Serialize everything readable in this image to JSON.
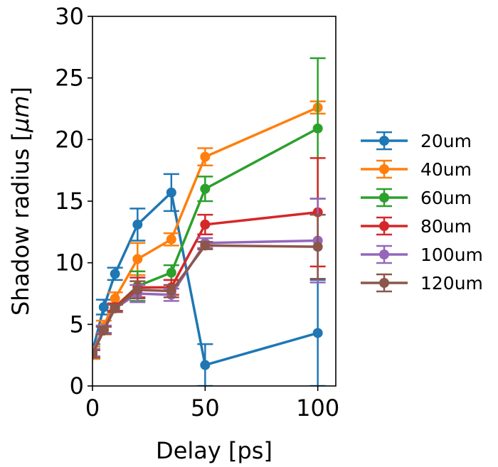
{
  "chart_data": {
    "type": "line",
    "xlabel": "Delay [ps]",
    "ylabel_prefix": "Shadow radius [",
    "ylabel_unit": "μm",
    "ylabel_suffix": "]",
    "xlim": [
      0,
      108
    ],
    "ylim": [
      0,
      30
    ],
    "xticks": [
      0,
      50,
      100
    ],
    "yticks": [
      0,
      5,
      10,
      15,
      20,
      25,
      30
    ],
    "grid": false,
    "legend_position": "right",
    "series": [
      {
        "name": "20um",
        "color": "#1f77b4",
        "x": [
          0,
          5,
          10,
          20,
          35,
          50,
          100
        ],
        "y": [
          2.8,
          6.4,
          9.1,
          13.1,
          15.7,
          1.7,
          4.3
        ],
        "err": [
          0.6,
          0.6,
          0.5,
          1.3,
          1.5,
          1.7,
          4.3
        ]
      },
      {
        "name": "40um",
        "color": "#ff7f0e",
        "x": [
          0,
          5,
          10,
          20,
          35,
          50,
          100
        ],
        "y": [
          2.7,
          4.8,
          7.1,
          10.3,
          11.9,
          18.6,
          22.6
        ],
        "err": [
          0.5,
          0.5,
          0.5,
          1.3,
          0.5,
          0.7,
          0.5
        ]
      },
      {
        "name": "60um",
        "color": "#2ca02c",
        "x": [
          0,
          5,
          10,
          20,
          35,
          50,
          100
        ],
        "y": [
          2.6,
          4.5,
          6.4,
          8.1,
          9.2,
          16.0,
          20.9
        ],
        "err": [
          0.3,
          0.3,
          0.3,
          1.2,
          0.6,
          1.0,
          5.7
        ]
      },
      {
        "name": "80um",
        "color": "#d62728",
        "x": [
          0,
          5,
          10,
          20,
          35,
          50,
          100
        ],
        "y": [
          2.7,
          4.6,
          6.4,
          8.0,
          8.0,
          13.1,
          14.1
        ],
        "err": [
          0.3,
          0.3,
          0.3,
          0.8,
          0.6,
          0.8,
          4.4
        ]
      },
      {
        "name": "100um",
        "color": "#9467bd",
        "x": [
          0,
          5,
          10,
          20,
          35,
          50,
          100
        ],
        "y": [
          2.7,
          4.6,
          6.3,
          7.5,
          7.4,
          11.6,
          11.8
        ],
        "err": [
          0.3,
          0.3,
          0.3,
          0.7,
          0.5,
          0.4,
          3.4
        ]
      },
      {
        "name": "120um",
        "color": "#8c564b",
        "x": [
          0,
          5,
          10,
          20,
          35,
          50,
          100
        ],
        "y": [
          2.6,
          4.5,
          6.3,
          7.8,
          7.7,
          11.4,
          11.3
        ],
        "err": [
          0.3,
          0.3,
          0.3,
          0.7,
          0.5,
          0.3,
          2.6
        ]
      }
    ]
  }
}
